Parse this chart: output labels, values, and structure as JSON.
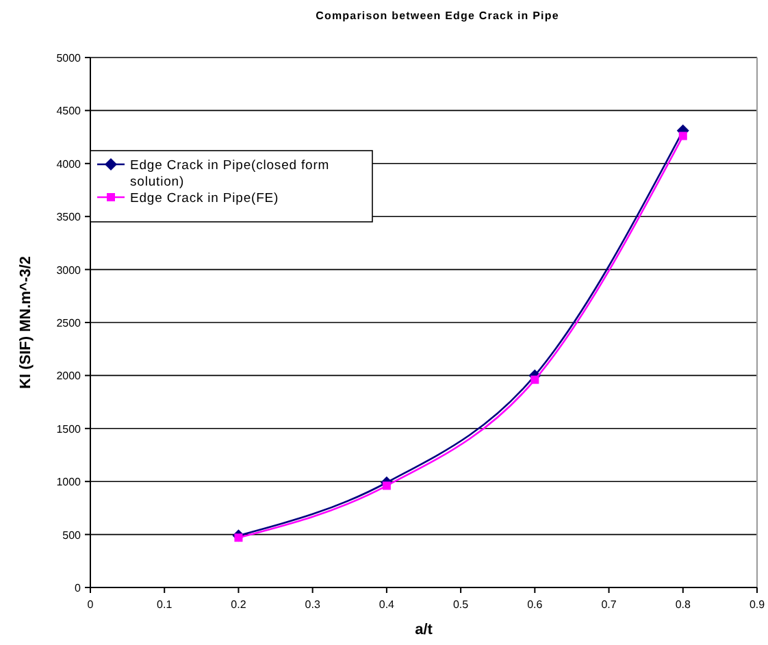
{
  "chart_data": {
    "type": "line",
    "title": "Comparison between Edge Crack in Pipe",
    "xlabel": "a/t",
    "ylabel": "KI (SIF) MN.m^-3/2",
    "x": [
      0.2,
      0.4,
      0.6,
      0.8
    ],
    "series": [
      {
        "name": "Edge Crack in Pipe(closed form solution)",
        "color": "#000080",
        "values": [
          490,
          990,
          2000,
          4310
        ],
        "marker": "diamond"
      },
      {
        "name": "Edge Crack in Pipe(FE)",
        "color": "#ff00ff",
        "values": [
          470,
          960,
          1960,
          4260
        ],
        "marker": "square"
      }
    ],
    "xlim": [
      0,
      0.9
    ],
    "xticks": [
      0,
      0.1,
      0.2,
      0.3,
      0.4,
      0.5,
      0.6,
      0.7,
      0.8,
      0.9
    ],
    "ylim": [
      0,
      5000
    ],
    "yticks": [
      0,
      500,
      1000,
      1500,
      2000,
      2500,
      3000,
      3500,
      4000,
      4500,
      5000
    ],
    "grid": "y",
    "legend": "top left",
    "line_style": "solid"
  }
}
